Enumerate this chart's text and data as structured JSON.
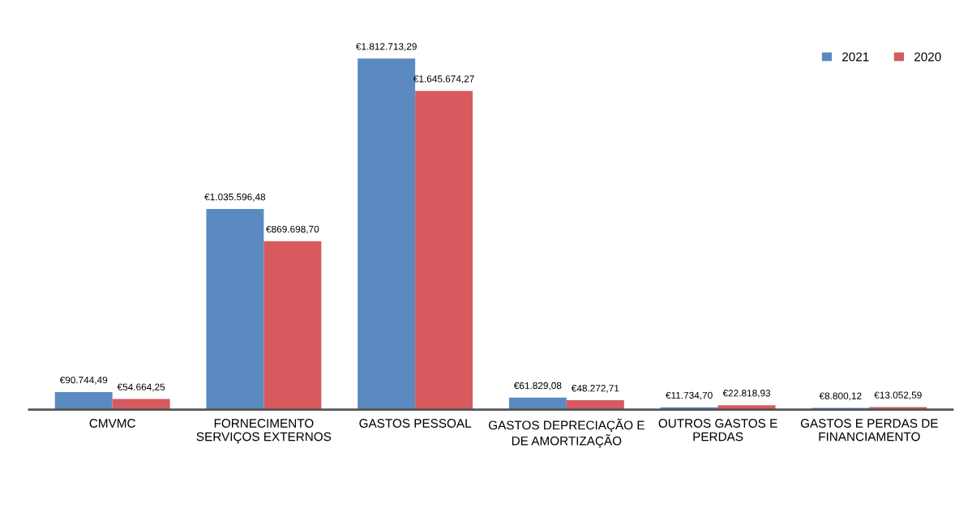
{
  "chart_data": {
    "type": "bar",
    "categories": [
      "CMVMC",
      "FORNECIMENTO\nSERVIÇOS EXTERNOS",
      "GASTOS PESSOAL",
      "GASTOS DEPRECIAÇÃO E\nDE AMORTIZAÇÃO",
      "OUTROS GASTOS E\nPERDAS",
      "GASTOS E PERDAS DE\nFINANCIAMENTO"
    ],
    "series": [
      {
        "name": "2021",
        "color": "#5a8ac0",
        "values": [
          90744.49,
          1035596.48,
          1812713.29,
          61829.08,
          11734.7,
          8800.12
        ],
        "value_labels": [
          "€90.744,49",
          "€1.035.596,48",
          "€1.812.713,29",
          "€61.829,08",
          "€11.734,70",
          "€8.800,12"
        ]
      },
      {
        "name": "2020",
        "color": "#d65a5e",
        "values": [
          54664.25,
          869698.7,
          1645674.27,
          48272.71,
          22818.93,
          13052.59
        ],
        "value_labels": [
          "€54.664,25",
          "€869.698,70",
          "€1.645.674,27",
          "€48.272,71",
          "€22.818,93",
          "€13.052,59"
        ]
      }
    ],
    "legend": "top right",
    "grid": false
  }
}
